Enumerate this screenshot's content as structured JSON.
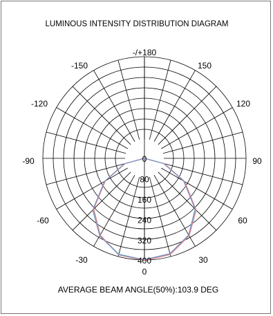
{
  "chart_data": {
    "type": "polar",
    "title": "LUMINOUS INTENSITY DISTRIBUTION DIAGRAM",
    "footer": "AVERAGE BEAM ANGLE(50%):103.9 DEG",
    "angle_labels": [
      "-/+180",
      "150",
      "120",
      "90",
      "60",
      "30",
      "0",
      "-30",
      "-60",
      "-90",
      "-120",
      "-150"
    ],
    "angular_grid_step_deg": 15,
    "radial_ticks": [
      0,
      80,
      160,
      240,
      320,
      400
    ],
    "radial_max": 400,
    "series": [
      {
        "color": "#6fc6c6",
        "angles": [
          -90,
          -75,
          -60,
          -45,
          -30,
          -15,
          0,
          15,
          30,
          45,
          60,
          75,
          90
        ],
        "values": [
          0,
          80,
          180,
          285,
          350,
          390,
          400,
          390,
          350,
          285,
          180,
          80,
          0
        ]
      },
      {
        "color": "#e08080",
        "angles": [
          -90,
          -75,
          -60,
          -45,
          -30,
          -15,
          0,
          15,
          30,
          45,
          60,
          75,
          90
        ],
        "values": [
          0,
          78,
          178,
          282,
          348,
          393,
          402,
          392,
          352,
          288,
          183,
          82,
          0
        ]
      },
      {
        "color": "#7a8fc8",
        "angles": [
          -90,
          -75,
          -60,
          -45,
          -30,
          -15,
          0,
          15,
          30,
          45,
          60,
          75,
          90
        ],
        "values": [
          0,
          82,
          182,
          288,
          352,
          392,
          399,
          388,
          348,
          282,
          178,
          78,
          0
        ]
      }
    ]
  }
}
